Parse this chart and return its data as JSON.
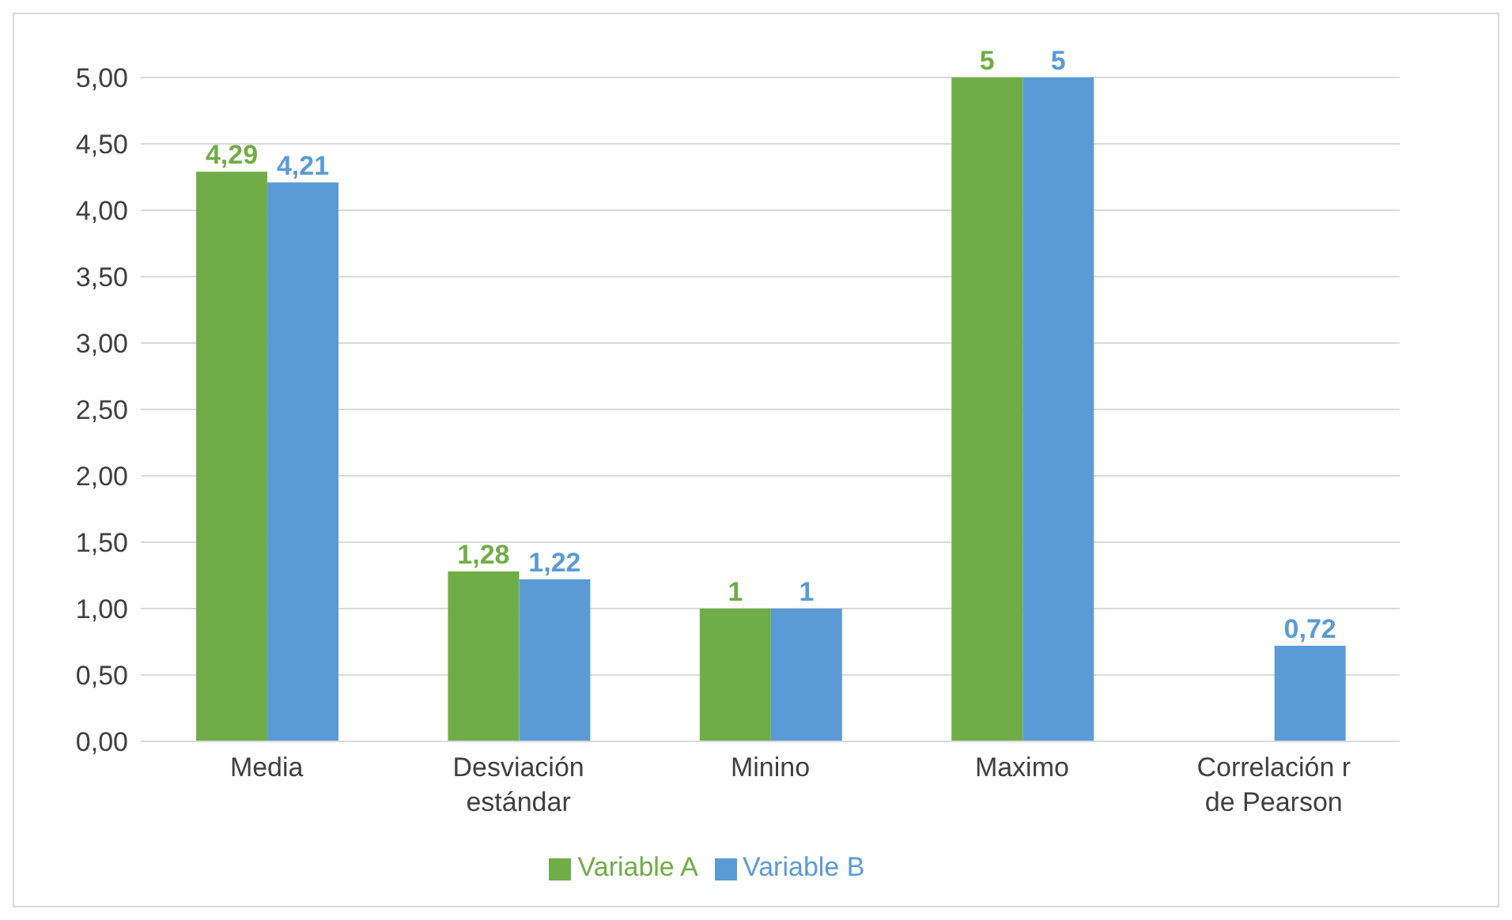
{
  "chart_data": {
    "type": "bar",
    "categories": [
      "Media",
      "Desviación estándar",
      "Minino",
      "Maximo",
      "Correlación r de Pearson"
    ],
    "series": [
      {
        "name": "Variable A",
        "color": "#70ad47",
        "values": [
          4.29,
          1.28,
          1,
          5,
          null
        ],
        "value_labels": [
          "4,29",
          "1,28",
          "1",
          "5",
          null
        ]
      },
      {
        "name": "Variable B",
        "color": "#5b9bd5",
        "values": [
          4.21,
          1.22,
          1,
          5,
          0.72
        ],
        "value_labels": [
          "4,21",
          "1,22",
          "1",
          "5",
          "0,72"
        ]
      }
    ],
    "ylim": [
      0,
      5
    ],
    "yticks": [
      {
        "value": 0,
        "label": "0,00"
      },
      {
        "value": 0.5,
        "label": "0,50"
      },
      {
        "value": 1,
        "label": "1,00"
      },
      {
        "value": 1.5,
        "label": "1,50"
      },
      {
        "value": 2,
        "label": "2,00"
      },
      {
        "value": 2.5,
        "label": "2,50"
      },
      {
        "value": 3,
        "label": "3,00"
      },
      {
        "value": 3.5,
        "label": "3,50"
      },
      {
        "value": 4,
        "label": "4,00"
      },
      {
        "value": 4.5,
        "label": "4,50"
      },
      {
        "value": 5,
        "label": "5,00"
      }
    ],
    "grid": "y",
    "legend": "bottom"
  }
}
